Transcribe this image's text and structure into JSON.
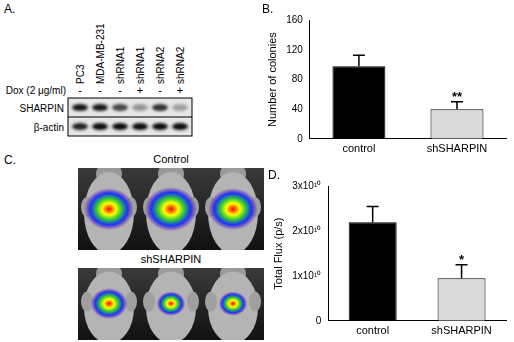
{
  "figure": {
    "blot": {
      "panel": "A.",
      "treatment_label": "Dox (2 μg/ml)",
      "lanes": [
        {
          "label": "PC3",
          "dox": "-"
        },
        {
          "label": "MDA-MB-231",
          "dox": "-"
        },
        {
          "label": "shRNA1",
          "dox": "-"
        },
        {
          "label": "shRNA1",
          "dox": "+"
        },
        {
          "label": "shRNA2",
          "dox": "-"
        },
        {
          "label": "shRNA2",
          "dox": "+"
        }
      ],
      "rows": [
        {
          "label": "SHARPIN",
          "intensity": [
            0.9,
            0.9,
            0.7,
            0.35,
            0.8,
            0.3
          ]
        },
        {
          "label": "β-actin",
          "intensity": [
            0.85,
            0.95,
            0.95,
            0.95,
            0.95,
            0.95
          ]
        }
      ]
    },
    "imaging": {
      "panel": "C.",
      "groups": [
        {
          "label": "Control",
          "signal": [
            0.95,
            1.0,
            0.95
          ]
        },
        {
          "label": "shSHARPIN",
          "signal": [
            0.7,
            0.55,
            0.55
          ]
        }
      ]
    }
  },
  "chart_data": [
    {
      "type": "bar",
      "title": "B.",
      "ylabel": "Number of colonies",
      "categories": [
        "control",
        "shSHARPIN"
      ],
      "values": [
        98,
        40
      ],
      "errors": [
        15,
        10
      ],
      "colors": [
        "#000000",
        "#d9d9d9"
      ],
      "ylim": [
        0,
        160
      ],
      "yticks": [
        0,
        40,
        80,
        120,
        160
      ],
      "grid": false,
      "annotations": [
        {
          "text": "**",
          "category": "shSHARPIN"
        }
      ]
    },
    {
      "type": "bar",
      "title": "D.",
      "ylabel": "Total Flux (p/s)",
      "categories": [
        "control",
        "shSHARPIN"
      ],
      "values": [
        22000000000,
        9500000000
      ],
      "errors": [
        3500000000,
        3000000000
      ],
      "colors": [
        "#000000",
        "#d9d9d9"
      ],
      "ylim": [
        0,
        30000000000
      ],
      "yticks": [
        0,
        {
          "value": 10000000000,
          "label": "1x10¹⁰"
        },
        {
          "value": 20000000000,
          "label": "2x10¹⁰"
        },
        {
          "value": 30000000000,
          "label": "3x10¹⁰"
        }
      ],
      "grid": false,
      "annotations": [
        {
          "text": "*",
          "category": "shSHARPIN"
        }
      ]
    }
  ]
}
